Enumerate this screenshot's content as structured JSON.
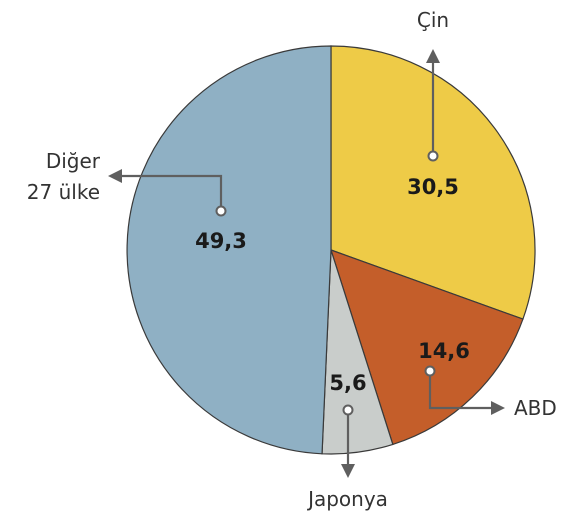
{
  "chart_data": {
    "type": "pie",
    "title": "",
    "start": "12 o'clock",
    "direction": "clockwise",
    "slices": [
      {
        "label": "Çin",
        "value": 30.5,
        "value_text": "30,5",
        "color": "#eecb47"
      },
      {
        "label": "ABD",
        "value": 14.6,
        "value_text": "14,6",
        "color": "#c45e2a"
      },
      {
        "label": "Japonya",
        "value": 5.6,
        "value_text": "5,6",
        "color": "#c9cdcb"
      },
      {
        "label": "Diğer 27 ülke",
        "label_lines": [
          "Diğer",
          "27 ülke"
        ],
        "value": 49.3,
        "value_text": "49,3",
        "color": "#8fb0c4"
      }
    ]
  }
}
